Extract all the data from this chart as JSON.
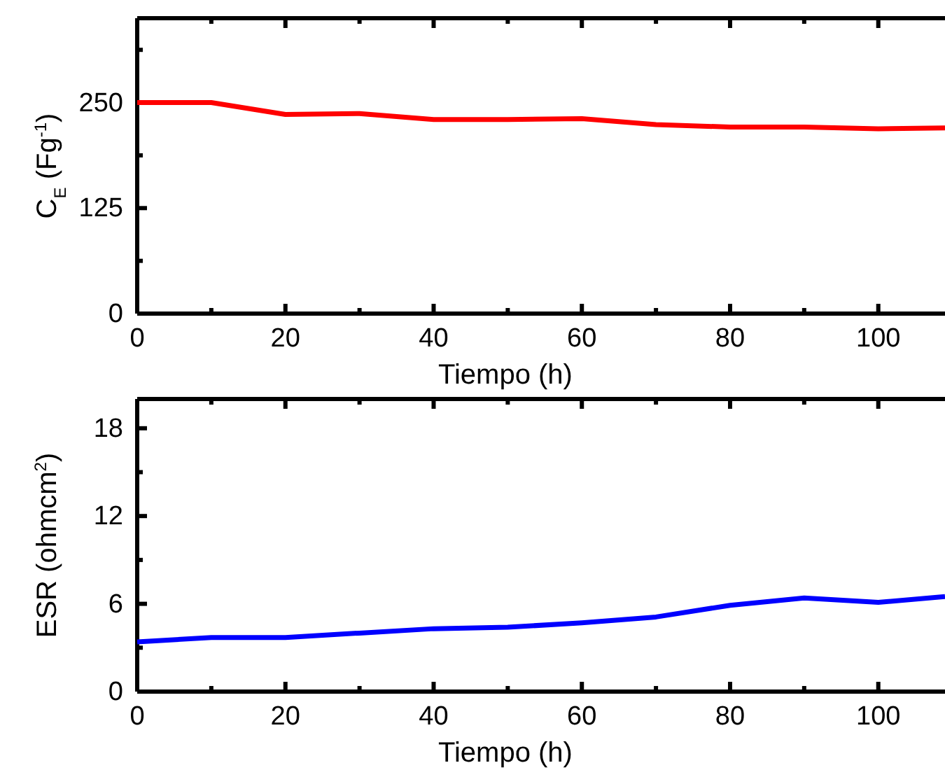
{
  "chart_data": [
    {
      "type": "line",
      "xlabel": "Tiempo (h)",
      "ylabel": "C$_{E}$ (Fg$^{-1}$)",
      "x": [
        0,
        10,
        20,
        30,
        40,
        50,
        60,
        70,
        80,
        90,
        100,
        109
      ],
      "series": [
        {
          "color": "#ff0000",
          "values": [
            250,
            250,
            236,
            237,
            230,
            230,
            231,
            224,
            221,
            221,
            219,
            220
          ]
        }
      ],
      "xlim": [
        0,
        109
      ],
      "ylim": [
        0,
        350
      ],
      "xticks": [
        0,
        {
          "value": 10,
          "label": null
        },
        20,
        {
          "value": 30,
          "label": null
        },
        40,
        {
          "value": 50,
          "label": null
        },
        60,
        {
          "value": 70,
          "label": null
        },
        80,
        {
          "value": 90,
          "label": null
        },
        100
      ],
      "yticks": [
        0,
        {
          "value": 62.5,
          "label": null
        },
        125,
        {
          "value": 187.5,
          "label": null
        },
        250,
        {
          "value": 312.5,
          "label": null
        }
      ],
      "grid": false,
      "marker": "none",
      "line_style": "solid"
    },
    {
      "type": "line",
      "xlabel": "Tiempo (h)",
      "ylabel": "ESR (ohmcm$^{2}$)",
      "x": [
        0,
        10,
        20,
        30,
        40,
        50,
        60,
        70,
        80,
        90,
        100,
        109
      ],
      "series": [
        {
          "color": "#0000ff",
          "values": [
            3.4,
            3.7,
            3.7,
            4.0,
            4.3,
            4.4,
            4.7,
            5.1,
            5.9,
            6.4,
            6.1,
            6.5
          ]
        }
      ],
      "xlim": [
        0,
        109
      ],
      "ylim": [
        0,
        20
      ],
      "xticks": [
        0,
        {
          "value": 10,
          "label": null
        },
        20,
        {
          "value": 30,
          "label": null
        },
        40,
        {
          "value": 50,
          "label": null
        },
        60,
        {
          "value": 70,
          "label": null
        },
        80,
        {
          "value": 90,
          "label": null
        },
        100
      ],
      "yticks": [
        0,
        {
          "value": 3,
          "label": null
        },
        6,
        {
          "value": 9,
          "label": null
        },
        12,
        {
          "value": 15,
          "label": null
        },
        18
      ],
      "grid": false,
      "marker": "none",
      "line_style": "solid"
    }
  ]
}
